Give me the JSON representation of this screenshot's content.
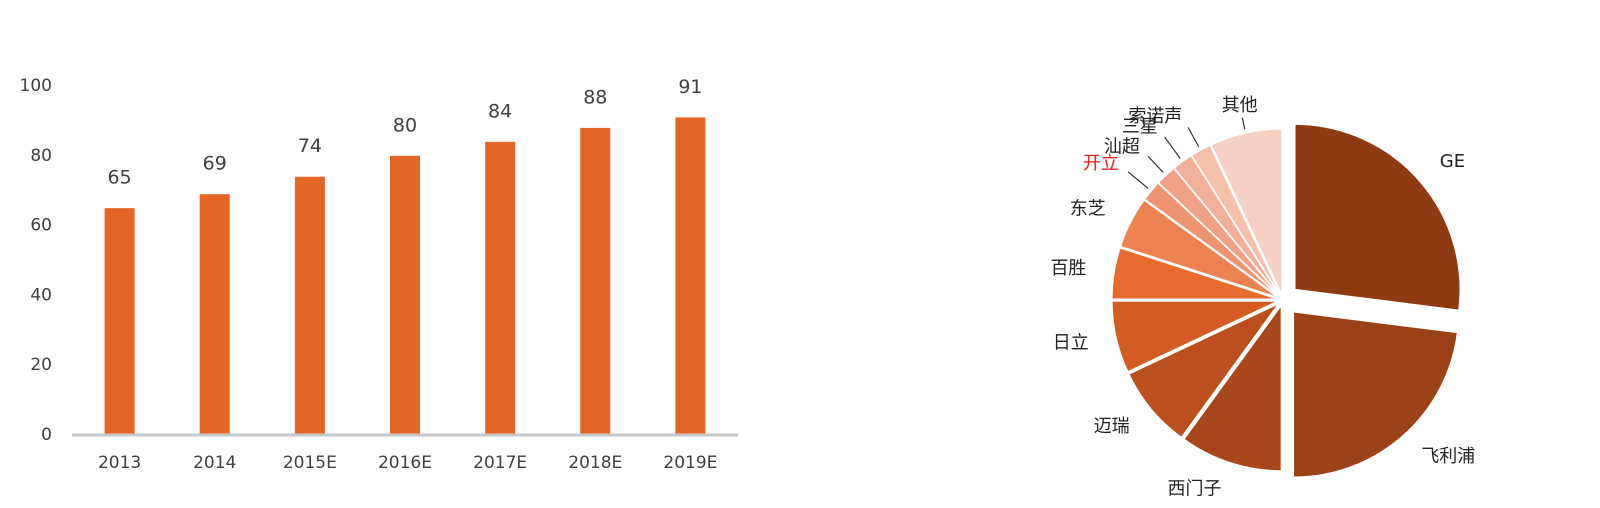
{
  "chart_data": [
    {
      "type": "bar",
      "categories": [
        "2013",
        "2014",
        "2015E",
        "2016E",
        "2017E",
        "2018E",
        "2019E"
      ],
      "values": [
        65,
        69,
        74,
        80,
        84,
        88,
        91
      ],
      "color": "#e56525",
      "ylim": [
        0,
        100
      ],
      "yticks": [
        0,
        20,
        40,
        60,
        80,
        100
      ],
      "grid": false
    },
    {
      "type": "pie",
      "categories": [
        "GE",
        "飞利浦",
        "西门子",
        "迈瑞",
        "日立",
        "百胜",
        "东芝",
        "开立",
        "汕超",
        "三星",
        "索诺声",
        "其他"
      ],
      "values": [
        27,
        23,
        10,
        8,
        7,
        5,
        5,
        2,
        2,
        2,
        2,
        7
      ],
      "colors": [
        "#8e3b12",
        "#9c4217",
        "#aa471a",
        "#bb4f1d",
        "#d45b22",
        "#e66b2c",
        "#ec8151",
        "#ee9270",
        "#f0a185",
        "#f2b09a",
        "#f4bfab",
        "#f7d0c4"
      ],
      "label_colors": [
        "#222222",
        "#222222",
        "#222222",
        "#222222",
        "#222222",
        "#222222",
        "#222222",
        "#e0201c",
        "#222222",
        "#222222",
        "#222222",
        "#222222"
      ]
    }
  ]
}
